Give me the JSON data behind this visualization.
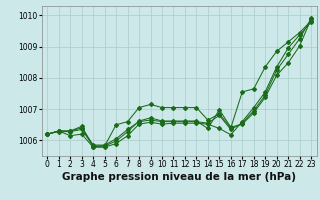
{
  "title": "Graphe pression niveau de la mer (hPa)",
  "xlabel_hours": [
    0,
    1,
    2,
    3,
    4,
    5,
    6,
    7,
    8,
    9,
    10,
    11,
    12,
    13,
    14,
    15,
    16,
    17,
    18,
    19,
    20,
    21,
    22,
    23
  ],
  "ylim": [
    1005.5,
    1010.3
  ],
  "yticks": [
    1006,
    1007,
    1008,
    1009,
    1010
  ],
  "background_color": "#cce8e8",
  "grid_color": "#aacccc",
  "line_color": "#1a6b1a",
  "series": [
    [
      1006.2,
      1006.3,
      1006.3,
      1006.4,
      1005.85,
      1005.85,
      1006.05,
      1006.35,
      1006.6,
      1006.65,
      1006.6,
      1006.6,
      1006.6,
      1006.6,
      1006.55,
      1006.8,
      1006.35,
      1006.55,
      1006.95,
      1007.45,
      1008.25,
      1008.75,
      1009.25,
      1009.9
    ],
    [
      1006.2,
      1006.3,
      1006.3,
      1006.45,
      1005.8,
      1005.82,
      1006.5,
      1006.6,
      1007.05,
      1007.15,
      1007.05,
      1007.05,
      1007.05,
      1007.05,
      1006.65,
      1006.85,
      1006.4,
      1007.55,
      1007.65,
      1008.35,
      1008.85,
      1009.15,
      1009.45,
      1009.82
    ],
    [
      1006.2,
      1006.3,
      1006.15,
      1006.2,
      1005.78,
      1005.78,
      1005.9,
      1006.15,
      1006.52,
      1006.58,
      1006.52,
      1006.55,
      1006.55,
      1006.55,
      1006.52,
      1006.38,
      1006.18,
      1006.6,
      1007.05,
      1007.55,
      1008.35,
      1008.95,
      1009.38,
      1009.78
    ],
    [
      1006.2,
      1006.28,
      1006.28,
      1006.35,
      1005.82,
      1005.82,
      1005.98,
      1006.28,
      1006.62,
      1006.72,
      1006.62,
      1006.62,
      1006.62,
      1006.62,
      1006.38,
      1006.98,
      1006.42,
      1006.52,
      1006.88,
      1007.38,
      1008.08,
      1008.48,
      1009.02,
      1009.88
    ]
  ],
  "title_fontsize": 7.5,
  "tick_fontsize": 5.5,
  "fig_width": 3.2,
  "fig_height": 2.0,
  "dpi": 100
}
